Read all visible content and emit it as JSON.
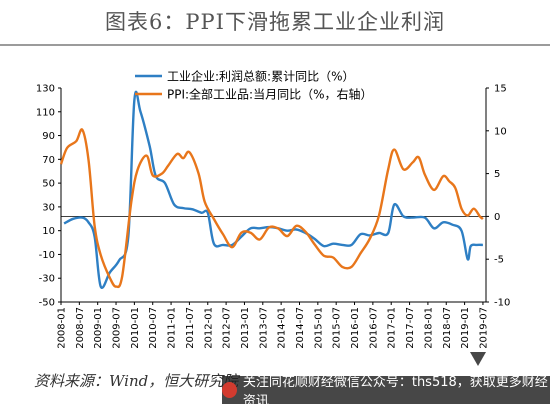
{
  "title": "图表6：PPI下滑拖累工业企业利润",
  "source_note": "资料来源：Wind，恒大研究院",
  "banner": {
    "text": "关注同花顺财经微信公众号：ths518，获取更多财经资讯"
  },
  "colors": {
    "profit": "#2e7fc4",
    "ppi": "#e8761b",
    "title_rule": "#9b9b9b"
  },
  "chart_data": {
    "type": "line",
    "title": "图表6：PPI下滑拖累工业企业利润",
    "xlabel": "",
    "ylabel": "",
    "x_tick_labels": [
      "2008-01",
      "2008-07",
      "2009-01",
      "2009-07",
      "2010-01",
      "2010-07",
      "2011-01",
      "2011-07",
      "2012-01",
      "2012-07",
      "2013-01",
      "2013-07",
      "2014-01",
      "2014-07",
      "2015-01",
      "2015-07",
      "2016-01",
      "2016-07",
      "2017-01",
      "2017-07",
      "2018-01",
      "2018-07",
      "2019-01",
      "2019-07"
    ],
    "y_left": {
      "ticks": [
        130,
        110,
        90,
        70,
        50,
        30,
        10,
        -10,
        -30,
        -50
      ],
      "lim": [
        -50,
        130
      ]
    },
    "y_right": {
      "ticks": [
        15,
        10,
        5,
        0,
        -5,
        -10
      ],
      "lim": [
        -10,
        15
      ]
    },
    "zero_line": "right-axis 0",
    "legend": [
      {
        "label": "工业企业:利润总额:累计同比（%）",
        "series": "profit"
      },
      {
        "label": "PPI:全部工业品:当月同比（%，右轴）",
        "series": "ppi"
      }
    ],
    "series": [
      {
        "name": "工业企业:利润总额:累计同比（%）",
        "key": "profit",
        "axis": "left",
        "color": "#2e7fc4",
        "points": [
          [
            "2008-02",
            16
          ],
          [
            "2008-05",
            20
          ],
          [
            "2008-08",
            21
          ],
          [
            "2008-10",
            17
          ],
          [
            "2008-12",
            5
          ],
          [
            "2009-02",
            -37
          ],
          [
            "2009-05",
            -25
          ],
          [
            "2009-08",
            -15
          ],
          [
            "2009-11",
            5
          ],
          [
            "2010-01",
            120
          ],
          [
            "2010-03",
            110
          ],
          [
            "2010-06",
            81
          ],
          [
            "2010-08",
            56
          ],
          [
            "2010-11",
            50
          ],
          [
            "2011-02",
            32
          ],
          [
            "2011-05",
            29
          ],
          [
            "2011-08",
            28
          ],
          [
            "2011-11",
            25
          ],
          [
            "2012-01",
            25
          ],
          [
            "2012-03",
            -1
          ],
          [
            "2012-06",
            -2
          ],
          [
            "2012-09",
            -2
          ],
          [
            "2012-12",
            5
          ],
          [
            "2013-03",
            12
          ],
          [
            "2013-06",
            12
          ],
          [
            "2013-09",
            13
          ],
          [
            "2013-12",
            12
          ],
          [
            "2014-03",
            10
          ],
          [
            "2014-06",
            11
          ],
          [
            "2014-09",
            8
          ],
          [
            "2014-12",
            3
          ],
          [
            "2015-03",
            -3
          ],
          [
            "2015-06",
            -1
          ],
          [
            "2015-09",
            -2
          ],
          [
            "2015-12",
            -2
          ],
          [
            "2016-03",
            7
          ],
          [
            "2016-06",
            6
          ],
          [
            "2016-09",
            8
          ],
          [
            "2016-12",
            8
          ],
          [
            "2017-02",
            32
          ],
          [
            "2017-05",
            22
          ],
          [
            "2017-08",
            21
          ],
          [
            "2017-12",
            21
          ],
          [
            "2018-03",
            12
          ],
          [
            "2018-06",
            17
          ],
          [
            "2018-09",
            15
          ],
          [
            "2018-12",
            10
          ],
          [
            "2019-02",
            -14
          ],
          [
            "2019-03",
            -3
          ],
          [
            "2019-05",
            -2
          ],
          [
            "2019-07",
            -2
          ]
        ]
      },
      {
        "name": "PPI:全部工业品:当月同比（%，右轴）",
        "key": "ppi",
        "axis": "right",
        "color": "#e8761b",
        "points": [
          [
            "2008-01",
            6.1
          ],
          [
            "2008-03",
            8.0
          ],
          [
            "2008-06",
            8.8
          ],
          [
            "2008-08",
            10.1
          ],
          [
            "2008-10",
            6.6
          ],
          [
            "2008-12",
            -1.1
          ],
          [
            "2009-02",
            -4.5
          ],
          [
            "2009-05",
            -7.2
          ],
          [
            "2009-07",
            -8.2
          ],
          [
            "2009-09",
            -7.0
          ],
          [
            "2009-12",
            1.7
          ],
          [
            "2010-02",
            5.4
          ],
          [
            "2010-05",
            7.1
          ],
          [
            "2010-07",
            4.8
          ],
          [
            "2010-10",
            5.0
          ],
          [
            "2010-12",
            5.9
          ],
          [
            "2011-03",
            7.3
          ],
          [
            "2011-05",
            6.8
          ],
          [
            "2011-07",
            7.5
          ],
          [
            "2011-10",
            5.0
          ],
          [
            "2011-12",
            1.7
          ],
          [
            "2012-03",
            -0.3
          ],
          [
            "2012-06",
            -2.1
          ],
          [
            "2012-09",
            -3.6
          ],
          [
            "2012-12",
            -1.9
          ],
          [
            "2013-03",
            -1.9
          ],
          [
            "2013-06",
            -2.7
          ],
          [
            "2013-09",
            -1.3
          ],
          [
            "2013-12",
            -1.4
          ],
          [
            "2014-03",
            -2.3
          ],
          [
            "2014-06",
            -1.1
          ],
          [
            "2014-09",
            -1.8
          ],
          [
            "2014-12",
            -3.3
          ],
          [
            "2015-03",
            -4.6
          ],
          [
            "2015-06",
            -4.8
          ],
          [
            "2015-09",
            -5.9
          ],
          [
            "2015-12",
            -5.9
          ],
          [
            "2016-03",
            -4.3
          ],
          [
            "2016-06",
            -2.6
          ],
          [
            "2016-09",
            0.1
          ],
          [
            "2016-12",
            5.5
          ],
          [
            "2017-02",
            7.8
          ],
          [
            "2017-05",
            5.5
          ],
          [
            "2017-08",
            6.3
          ],
          [
            "2017-10",
            6.9
          ],
          [
            "2017-12",
            4.9
          ],
          [
            "2018-03",
            3.1
          ],
          [
            "2018-06",
            4.7
          ],
          [
            "2018-08",
            4.1
          ],
          [
            "2018-10",
            3.3
          ],
          [
            "2018-12",
            0.9
          ],
          [
            "2019-02",
            0.1
          ],
          [
            "2019-04",
            0.9
          ],
          [
            "2019-06",
            0.0
          ],
          [
            "2019-07",
            -0.3
          ]
        ]
      }
    ]
  }
}
